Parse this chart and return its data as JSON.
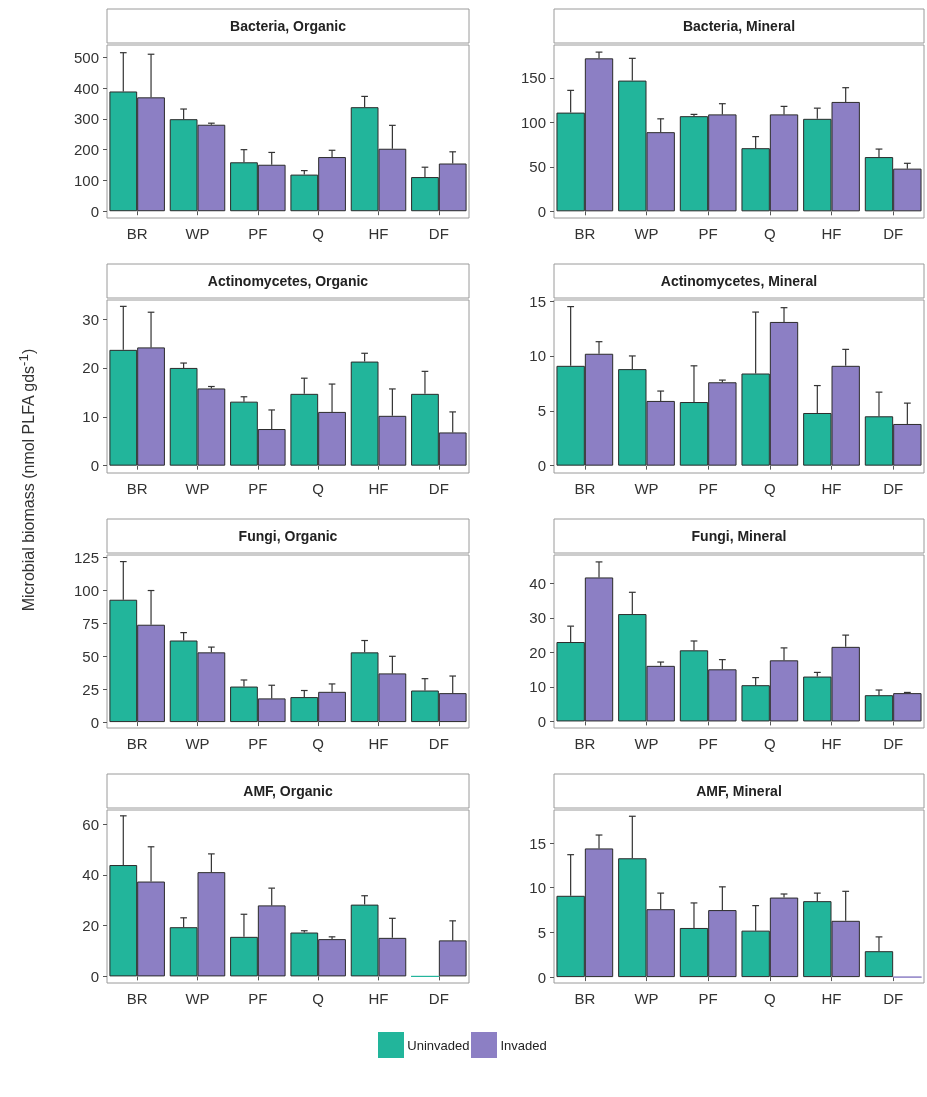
{
  "chart_data": [
    {
      "type": "bar",
      "title": "Bacteria, Organic",
      "legend": "bottom",
      "categories": [
        "BR",
        "WP",
        "PF",
        "Q",
        "HF",
        "DF"
      ],
      "ylim": [
        -22,
        540
      ],
      "yticks": [
        0,
        100,
        200,
        300,
        400,
        500
      ],
      "series": [
        {
          "name": "Uninvaded",
          "color": "#22b59b",
          "values": [
            389,
            299,
            159,
            119,
            338,
            111
          ],
          "errors": [
            [
              389,
              515
            ],
            [
              299,
              332
            ],
            [
              159,
              200
            ],
            [
              119,
              132
            ],
            [
              338,
              373
            ],
            [
              111,
              143
            ]
          ]
        },
        {
          "name": "Invaded",
          "color": "#8c7fc4",
          "values": [
            370,
            281,
            151,
            176,
            203,
            155
          ],
          "errors": [
            [
              370,
              510
            ],
            [
              281,
              286
            ],
            [
              151,
              191
            ],
            [
              176,
              198
            ],
            [
              203,
              279
            ],
            [
              155,
              193
            ]
          ]
        }
      ]
    },
    {
      "type": "bar",
      "title": "Bacteria, Mineral",
      "categories": [
        "BR",
        "WP",
        "PF",
        "Q",
        "HF",
        "DF"
      ],
      "ylim": [
        -7.5,
        187
      ],
      "yticks": [
        0,
        50,
        100,
        150
      ],
      "series": [
        {
          "color": "#22b59b",
          "values": [
            111,
            147,
            107,
            71,
            104,
            61
          ],
          "errors": [
            [
              111,
              136
            ],
            [
              147,
              172
            ],
            [
              107,
              109
            ],
            [
              71,
              84
            ],
            [
              104,
              116
            ],
            [
              61,
              70
            ]
          ]
        },
        {
          "color": "#8c7fc4",
          "values": [
            172,
            89,
            109,
            109,
            123,
            48
          ],
          "errors": [
            [
              172,
              179
            ],
            [
              89,
              104
            ],
            [
              109,
              121
            ],
            [
              109,
              118
            ],
            [
              123,
              139
            ],
            [
              48,
              54
            ]
          ]
        }
      ]
    },
    {
      "type": "bar",
      "title": "Actinomycetes, Organic",
      "ylabel": "Microbial biomass (nmol PLFA gds$^{-1}$)",
      "categories": [
        "BR",
        "WP",
        "PF",
        "Q",
        "HF",
        "DF"
      ],
      "ylim": [
        -1.5,
        33.9
      ],
      "yticks": [
        0,
        10,
        20,
        30
      ],
      "series": [
        {
          "color": "#22b59b",
          "values": [
            23.7,
            20.0,
            13.1,
            14.7,
            21.3,
            14.7
          ],
          "errors": [
            [
              23.7,
              32.6
            ],
            [
              20.0,
              21.0
            ],
            [
              13.1,
              14.1
            ],
            [
              14.7,
              17.9
            ],
            [
              21.3,
              23.0
            ],
            [
              14.7,
              19.3
            ]
          ]
        },
        {
          "color": "#8c7fc4",
          "values": [
            24.2,
            15.8,
            7.5,
            11.0,
            10.2,
            6.8
          ],
          "errors": [
            [
              24.2,
              31.4
            ],
            [
              15.8,
              16.2
            ],
            [
              7.5,
              11.4
            ],
            [
              11.0,
              16.7
            ],
            [
              10.2,
              15.7
            ],
            [
              6.8,
              11.0
            ]
          ]
        }
      ]
    },
    {
      "type": "bar",
      "title": "Actinomycetes, Mineral",
      "categories": [
        "BR",
        "WP",
        "PF",
        "Q",
        "HF",
        "DF"
      ],
      "ylim": [
        -0.67,
        15.1
      ],
      "yticks": [
        0,
        5,
        10,
        15
      ],
      "series": [
        {
          "color": "#22b59b",
          "values": [
            9.1,
            8.8,
            5.8,
            8.4,
            4.8,
            4.5
          ],
          "errors": [
            [
              9.1,
              14.5
            ],
            [
              8.8,
              10.0
            ],
            [
              5.8,
              9.1
            ],
            [
              8.4,
              14.0
            ],
            [
              4.8,
              7.3
            ],
            [
              4.5,
              6.7
            ]
          ]
        },
        {
          "color": "#8c7fc4",
          "values": [
            10.2,
            5.9,
            7.6,
            13.1,
            9.1,
            3.8
          ],
          "errors": [
            [
              10.2,
              11.3
            ],
            [
              5.9,
              6.8
            ],
            [
              7.6,
              7.8
            ],
            [
              13.1,
              14.4
            ],
            [
              9.1,
              10.6
            ],
            [
              3.8,
              5.7
            ]
          ]
        }
      ]
    },
    {
      "type": "bar",
      "title": "Fungi, Organic",
      "categories": [
        "BR",
        "WP",
        "PF",
        "Q",
        "HF",
        "DF"
      ],
      "ylim": [
        -4.5,
        127
      ],
      "yticks": [
        0,
        25,
        50,
        75,
        100,
        125
      ],
      "series": [
        {
          "color": "#22b59b",
          "values": [
            93,
            62,
            27,
            19,
            53,
            24
          ],
          "errors": [
            [
              93,
              122
            ],
            [
              62,
              68
            ],
            [
              27,
              32
            ],
            [
              19,
              24
            ],
            [
              53,
              62
            ],
            [
              24,
              33
            ]
          ]
        },
        {
          "color": "#8c7fc4",
          "values": [
            74,
            53,
            18,
            23,
            37,
            22
          ],
          "errors": [
            [
              74,
              100
            ],
            [
              53,
              57
            ],
            [
              18,
              28
            ],
            [
              23,
              29
            ],
            [
              37,
              50
            ],
            [
              22,
              35
            ]
          ]
        }
      ]
    },
    {
      "type": "bar",
      "title": "Fungi, Mineral",
      "categories": [
        "BR",
        "WP",
        "PF",
        "Q",
        "HF",
        "DF"
      ],
      "ylim": [
        -1.9,
        48.2
      ],
      "yticks": [
        0,
        10,
        20,
        30,
        40
      ],
      "series": [
        {
          "color": "#22b59b",
          "values": [
            23.0,
            31.1,
            20.6,
            10.5,
            13.0,
            7.6
          ],
          "errors": [
            [
              23.0,
              27.6
            ],
            [
              31.1,
              37.4
            ],
            [
              20.6,
              23.3
            ],
            [
              10.5,
              12.7
            ],
            [
              13.0,
              14.2
            ],
            [
              7.6,
              9.1
            ]
          ]
        },
        {
          "color": "#8c7fc4",
          "values": [
            41.7,
            16.1,
            15.1,
            17.7,
            21.6,
            8.2
          ],
          "errors": [
            [
              41.7,
              46.2
            ],
            [
              16.1,
              17.2
            ],
            [
              15.1,
              17.9
            ],
            [
              17.7,
              21.3
            ],
            [
              21.6,
              25.0
            ],
            [
              8.2,
              8.4
            ]
          ]
        }
      ]
    },
    {
      "type": "bar",
      "title": "AMF, Organic",
      "categories": [
        "BR",
        "WP",
        "PF",
        "Q",
        "HF",
        "DF"
      ],
      "ylim": [
        -2.6,
        65.6
      ],
      "yticks": [
        0,
        20,
        40,
        60
      ],
      "series": [
        {
          "color": "#22b59b",
          "values": [
            43.9,
            19.4,
            15.6,
            17.3,
            28.3,
            0
          ],
          "errors": [
            [
              43.9,
              63.3
            ],
            [
              19.4,
              23.1
            ],
            [
              15.6,
              24.5
            ],
            [
              17.3,
              18.0
            ],
            [
              28.3,
              31.8
            ],
            null
          ]
        },
        {
          "color": "#8c7fc4",
          "values": [
            37.4,
            41.1,
            28.0,
            14.7,
            15.2,
            14.2
          ],
          "errors": [
            [
              37.4,
              51.1
            ],
            [
              41.1,
              48.3
            ],
            [
              28.0,
              34.8
            ],
            [
              14.7,
              15.6
            ],
            [
              15.2,
              22.9
            ],
            [
              14.2,
              21.9
            ]
          ]
        }
      ]
    },
    {
      "type": "bar",
      "title": "AMF, Mineral",
      "categories": [
        "BR",
        "WP",
        "PF",
        "Q",
        "HF",
        "DF"
      ],
      "ylim": [
        -0.66,
        18.7
      ],
      "yticks": [
        0,
        5,
        10,
        15
      ],
      "series": [
        {
          "color": "#22b59b",
          "values": [
            9.1,
            13.3,
            5.5,
            5.2,
            8.5,
            2.9
          ],
          "errors": [
            [
              9.1,
              13.7
            ],
            [
              13.3,
              18.0
            ],
            [
              5.5,
              8.3
            ],
            [
              5.2,
              8.0
            ],
            [
              8.5,
              9.4
            ],
            [
              2.9,
              4.5
            ]
          ]
        },
        {
          "color": "#8c7fc4",
          "values": [
            14.4,
            7.6,
            7.5,
            8.9,
            6.3,
            0
          ],
          "errors": [
            [
              14.4,
              15.9
            ],
            [
              7.6,
              9.4
            ],
            [
              7.5,
              10.1
            ],
            [
              8.9,
              9.3
            ],
            [
              6.3,
              9.6
            ],
            null
          ]
        }
      ]
    }
  ]
}
